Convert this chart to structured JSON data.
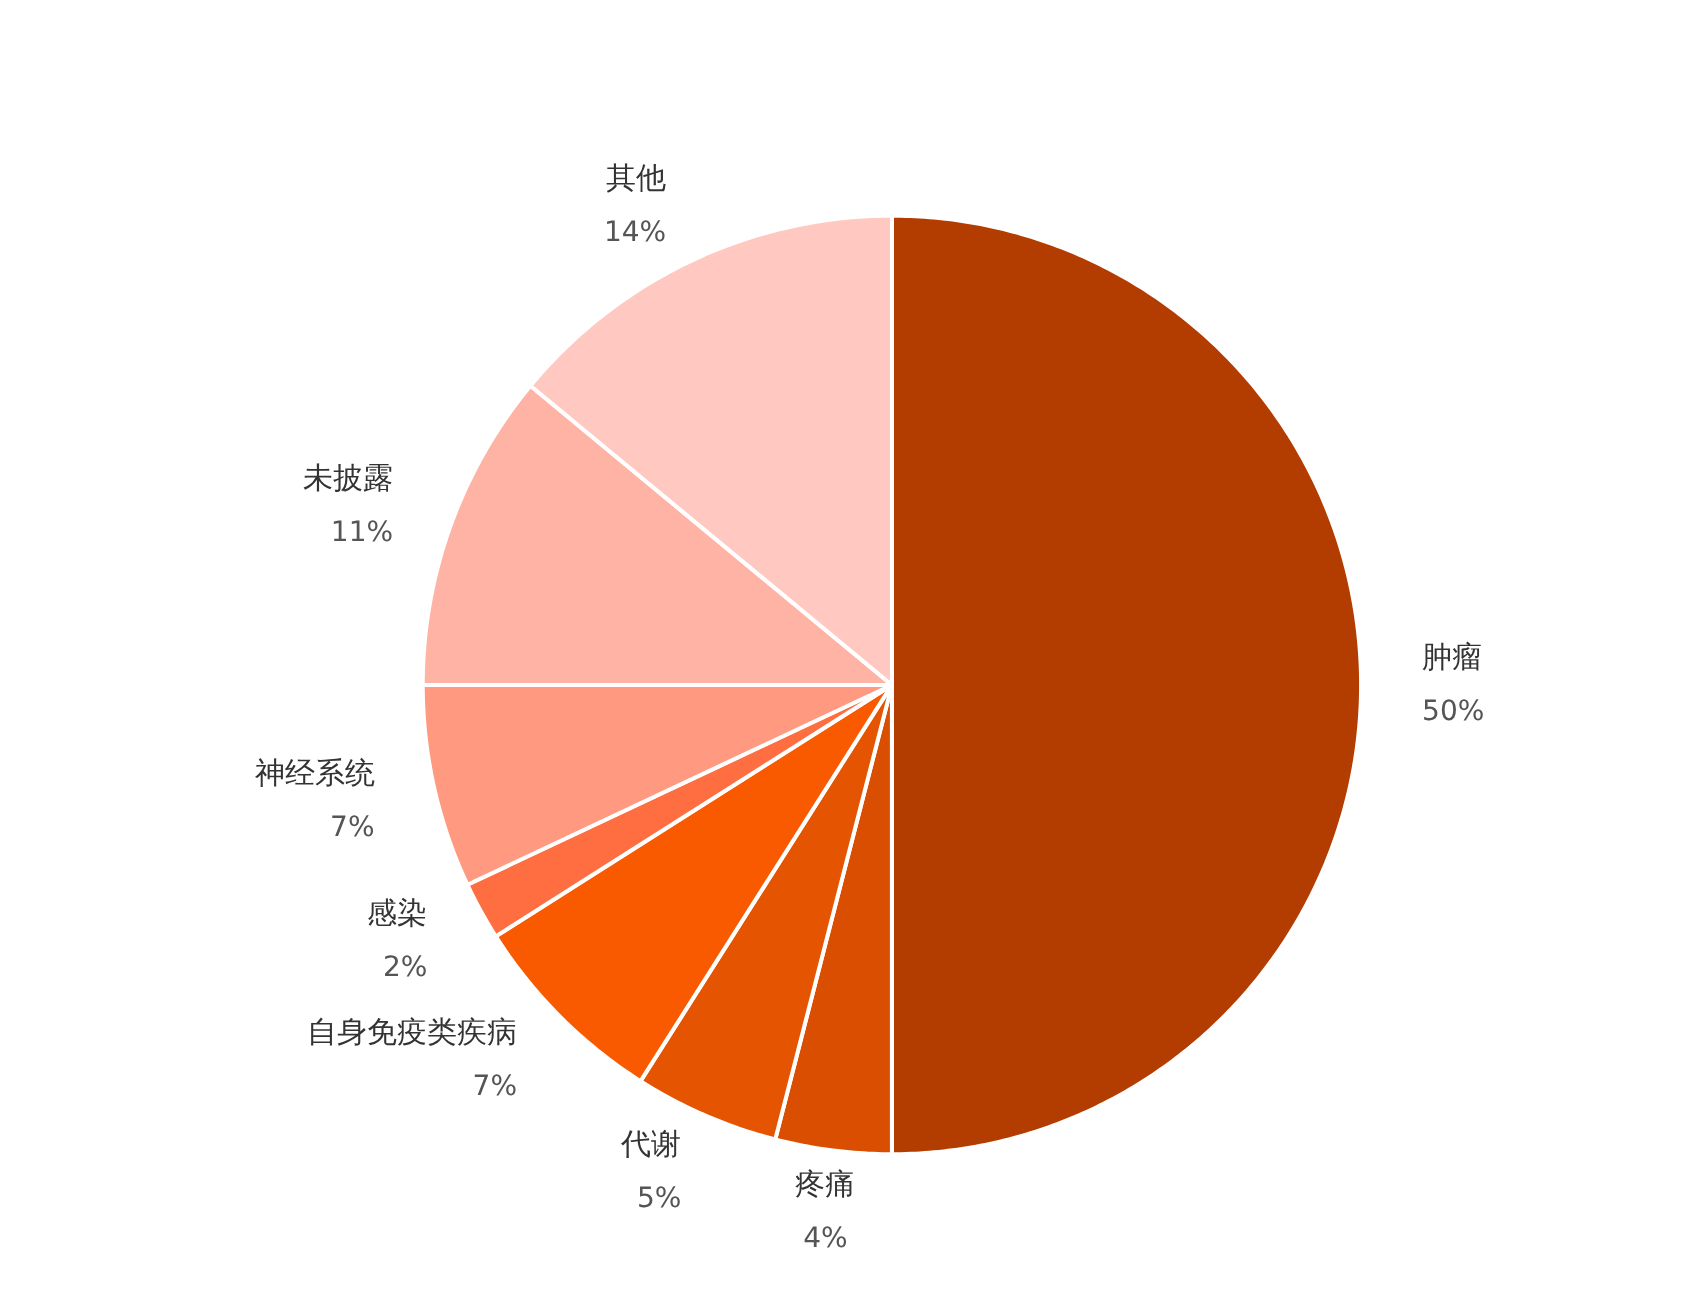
{
  "chart_data": {
    "type": "pie",
    "categories": [
      "肿瘤",
      "疼痛",
      "代谢",
      "自身免疫类疾病",
      "感染",
      "神经系统",
      "未披露",
      "其他"
    ],
    "values": [
      50,
      4,
      5,
      7,
      2,
      7,
      11,
      14
    ],
    "colors": [
      "#b33c00",
      "#d94e00",
      "#e55400",
      "#f95a00",
      "#ff6e40",
      "#ff9980",
      "#ffb3a5",
      "#ffc8c0"
    ],
    "value_labels": [
      "50%",
      "4%",
      "5%",
      "7%",
      "2%",
      "7%",
      "11%",
      "14%"
    ]
  }
}
